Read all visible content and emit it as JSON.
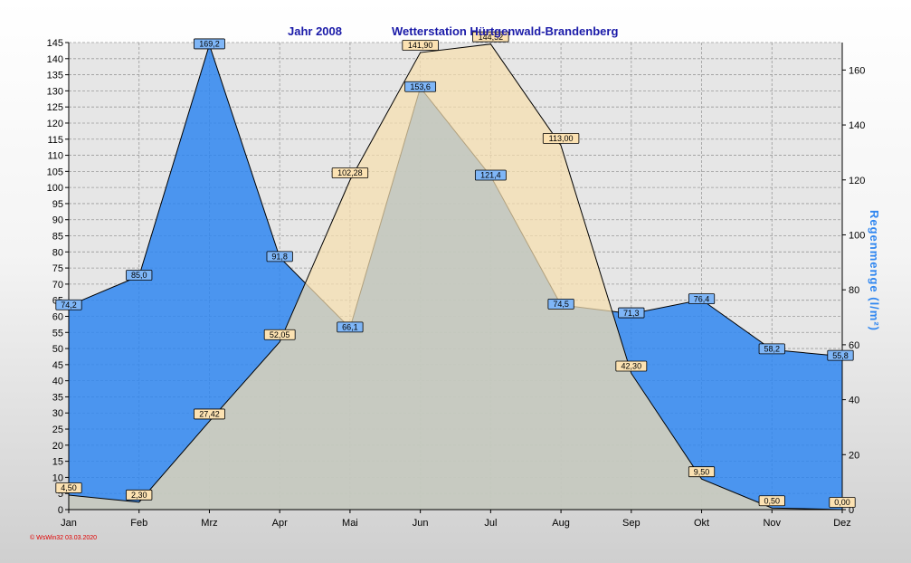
{
  "chart_data": {
    "type": "area",
    "title_year": "Jahr  2008",
    "title_station": "Wetterstation Hürtgenwald-Brandenberg",
    "ylabel_right": "Regenmenge  (l/m²)",
    "categories": [
      "Jan",
      "Feb",
      "Mrz",
      "Apr",
      "Mai",
      "Jun",
      "Jul",
      "Aug",
      "Sep",
      "Okt",
      "Nov",
      "Dez"
    ],
    "ylim_left": [
      0,
      145
    ],
    "ylim_right": [
      0,
      170
    ],
    "grid": true,
    "series": [
      {
        "axis": "right",
        "values": [
          74.2,
          85.0,
          169.2,
          91.8,
          66.1,
          153.6,
          121.4,
          74.5,
          71.3,
          76.4,
          58.2,
          55.8
        ],
        "labels": [
          "74,2",
          "85,0",
          "169,2",
          "91,8",
          "66,1",
          "153,6",
          "121,4",
          "74,5",
          "71,3",
          "76,4",
          "58,2",
          "55,8"
        ],
        "color": "#2f86f0"
      },
      {
        "axis": "left",
        "values": [
          4.5,
          2.3,
          27.42,
          52.05,
          102.28,
          141.9,
          144.52,
          113.0,
          42.3,
          9.5,
          0.5,
          0.0
        ],
        "labels": [
          "4,50",
          "2,30",
          "27,42",
          "52,05",
          "102,28",
          "141,90",
          "144,52",
          "113,00",
          "42,30",
          "9,50",
          "0,50",
          "0,00"
        ],
        "color": "#f7dfae"
      }
    ]
  },
  "footer": {
    "credit": "© WsWin32  03.03.2020"
  }
}
